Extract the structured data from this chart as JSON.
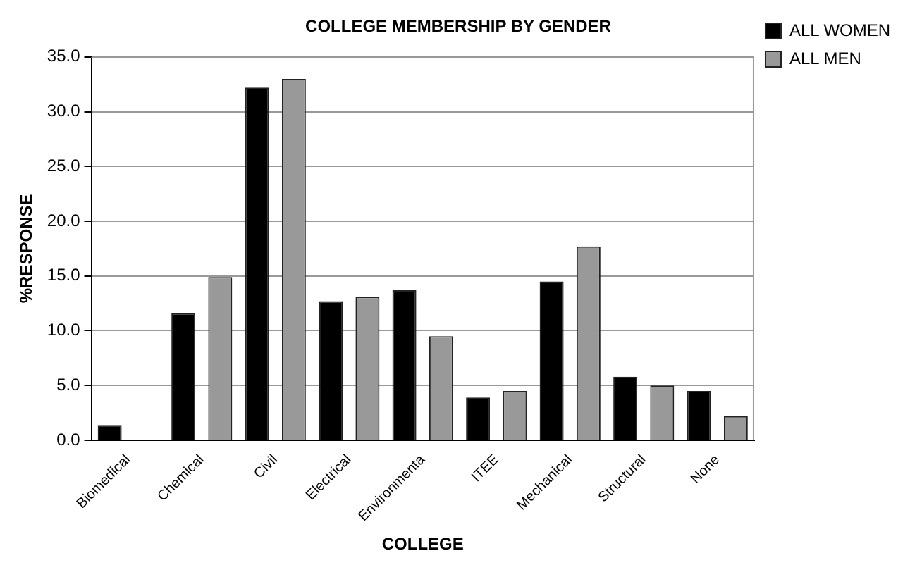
{
  "chart_data": {
    "type": "bar",
    "title": "COLLEGE MEMBERSHIP BY GENDER",
    "xlabel": "COLLEGE",
    "ylabel": "%RESPONSE",
    "categories": [
      "Biomedical",
      "Chemical",
      "Civil",
      "Electrical",
      "Environmenta",
      "ITEE",
      "Mechanical",
      "Structural",
      "None"
    ],
    "series": [
      {
        "name": "ALL WOMEN",
        "color": "#000000",
        "values": [
          1.4,
          11.6,
          32.2,
          12.7,
          13.7,
          3.9,
          14.5,
          5.8,
          4.5
        ]
      },
      {
        "name": "ALL MEN",
        "color": "#999999",
        "values": [
          0,
          14.9,
          33.0,
          13.1,
          9.5,
          4.5,
          17.7,
          5.0,
          2.2
        ]
      }
    ],
    "ylim": [
      0,
      35
    ],
    "yticks": [
      {
        "value": 0,
        "label": "0.0"
      },
      {
        "value": 5,
        "label": "5.0"
      },
      {
        "value": 10,
        "label": "10.0"
      },
      {
        "value": 15,
        "label": "15.0"
      },
      {
        "value": 20,
        "label": "20.0"
      },
      {
        "value": 25,
        "label": "25.0"
      },
      {
        "value": 30,
        "label": "30.0"
      },
      {
        "value": 35,
        "label": "35.0"
      }
    ],
    "grid": "y",
    "legend": "right"
  }
}
